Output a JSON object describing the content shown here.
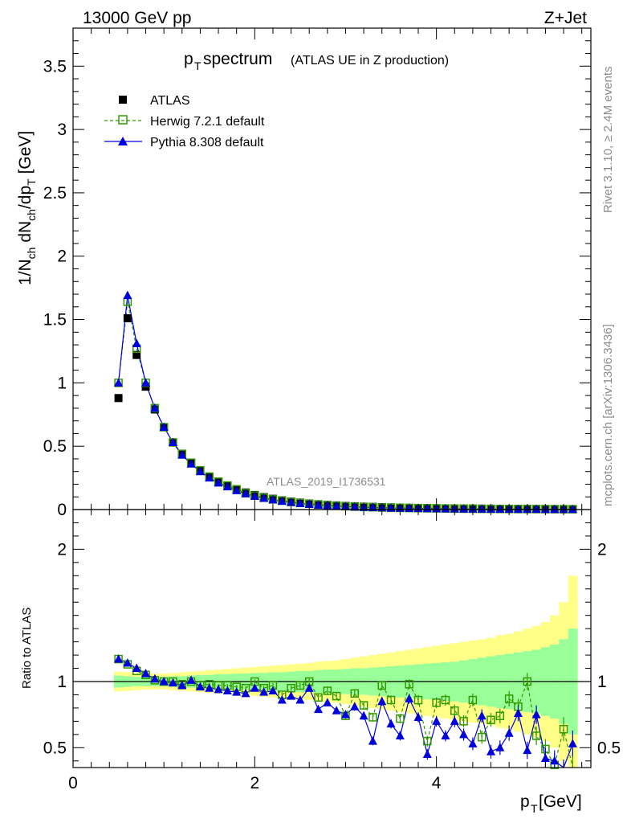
{
  "header": {
    "energy": "13000 GeV pp",
    "process": "Z+Jet"
  },
  "watermarks": {
    "rivet": "Rivet 3.1.10, ≥ 2.4M events",
    "mcplots": "mcplots.cern.ch [arXiv:1306.3436]",
    "analysis": "ATLAS_2019_I1736531"
  },
  "colors": {
    "atlas": "#000000",
    "herwig": "#339900",
    "pythia": "#0000dd",
    "band_inner": "#99ff99",
    "band_outer": "#ffff88"
  },
  "chart_data": [
    {
      "type": "scatter",
      "title_main": "p",
      "title_sub": "T",
      "title_rest": " spectrum",
      "title_note": "(ATLAS UE in Z production)",
      "ylabel": "1/N_ch dN_ch/dp_T [GeV]",
      "xlim": [
        0,
        5.7
      ],
      "ylim": [
        0,
        3.8
      ],
      "yticks": [
        "0",
        "0.5",
        "1",
        "1.5",
        "2",
        "2.5",
        "3",
        "3.5"
      ],
      "legend_position": "top-left",
      "legend": [
        "ATLAS",
        "Herwig 7.2.1 default",
        "Pythia 8.308 default"
      ],
      "x": [
        0.5,
        0.6,
        0.7,
        0.8,
        0.9,
        1.0,
        1.1,
        1.2,
        1.3,
        1.4,
        1.5,
        1.6,
        1.7,
        1.8,
        1.9,
        2.0,
        2.1,
        2.2,
        2.3,
        2.4,
        2.5,
        2.6,
        2.7,
        2.8,
        2.9,
        3.0,
        3.1,
        3.2,
        3.3,
        3.4,
        3.5,
        3.6,
        3.7,
        3.8,
        3.9,
        4.0,
        4.1,
        4.2,
        4.3,
        4.4,
        4.5,
        4.6,
        4.7,
        4.8,
        4.9,
        5.0,
        5.1,
        5.2,
        5.3,
        5.4,
        5.5
      ],
      "series": [
        {
          "name": "ATLAS",
          "values": [
            0.88,
            1.51,
            1.22,
            0.97,
            0.79,
            0.65,
            0.53,
            0.44,
            0.37,
            0.31,
            0.26,
            0.22,
            0.19,
            0.16,
            0.135,
            0.115,
            0.098,
            0.085,
            0.073,
            0.063,
            0.055,
            0.048,
            0.042,
            0.037,
            0.033,
            0.029,
            0.026,
            0.023,
            0.021,
            0.019,
            0.017,
            0.015,
            0.014,
            0.013,
            0.012,
            0.011,
            0.01,
            0.009,
            0.0085,
            0.008,
            0.0075,
            0.007,
            0.0065,
            0.006,
            0.0057,
            0.0054,
            0.005,
            0.0047,
            0.0044,
            0.0042,
            0.004
          ]
        },
        {
          "name": "Herwig 7.2.1 default",
          "values": [
            1.0,
            1.64,
            1.27,
            1.0,
            0.8,
            0.65,
            0.53,
            0.44,
            0.37,
            0.31,
            0.26,
            0.22,
            0.19,
            0.16,
            0.13,
            0.11,
            0.093,
            0.08,
            0.07,
            0.06,
            0.052,
            0.046,
            0.04,
            0.034,
            0.03,
            0.026,
            0.023,
            0.02,
            0.018,
            0.016,
            0.014,
            0.013,
            0.012,
            0.011,
            0.01,
            0.009,
            0.008,
            0.007,
            0.0065,
            0.006,
            0.0055,
            0.005,
            0.0046,
            0.0043,
            0.004,
            0.0037,
            0.0034,
            0.0031,
            0.0028,
            0.0026,
            0.0024
          ]
        },
        {
          "name": "Pythia 8.308 default",
          "values": [
            1.0,
            1.69,
            1.31,
            1.0,
            0.8,
            0.65,
            0.53,
            0.43,
            0.36,
            0.3,
            0.25,
            0.21,
            0.18,
            0.15,
            0.125,
            0.105,
            0.09,
            0.077,
            0.066,
            0.056,
            0.048,
            0.042,
            0.036,
            0.031,
            0.027,
            0.024,
            0.021,
            0.018,
            0.016,
            0.014,
            0.012,
            0.011,
            0.01,
            0.009,
            0.008,
            0.0072,
            0.0064,
            0.0057,
            0.0051,
            0.0046,
            0.0041,
            0.0037,
            0.0033,
            0.003,
            0.0027,
            0.0024,
            0.0021,
            0.0019,
            0.0017,
            0.0015,
            0.0014
          ]
        }
      ]
    },
    {
      "type": "scatter",
      "ylabel": "Ratio to ATLAS",
      "xlabel_main": "p",
      "xlabel_sub": "T",
      "xlabel_unit": " [GeV]",
      "xlim": [
        0,
        5.7
      ],
      "ylim": [
        0.35,
        2.3
      ],
      "xticks": [
        "0",
        "2",
        "4"
      ],
      "yticks": [
        "0.5",
        "1",
        "2"
      ],
      "reference_line": 1,
      "x": [
        0.5,
        0.6,
        0.7,
        0.8,
        0.9,
        1.0,
        1.1,
        1.2,
        1.3,
        1.4,
        1.5,
        1.6,
        1.7,
        1.8,
        1.9,
        2.0,
        2.1,
        2.2,
        2.3,
        2.4,
        2.5,
        2.6,
        2.7,
        2.8,
        2.9,
        3.0,
        3.1,
        3.2,
        3.3,
        3.4,
        3.5,
        3.6,
        3.7,
        3.8,
        3.9,
        4.0,
        4.1,
        4.2,
        4.3,
        4.4,
        4.5,
        4.6,
        4.7,
        4.8,
        4.9,
        5.0,
        5.1,
        5.2,
        5.3,
        5.4,
        5.5
      ],
      "band_inner": [
        0.045,
        0.04,
        0.035,
        0.035,
        0.035,
        0.035,
        0.04,
        0.04,
        0.045,
        0.05,
        0.05,
        0.055,
        0.055,
        0.06,
        0.06,
        0.065,
        0.065,
        0.07,
        0.07,
        0.075,
        0.08,
        0.08,
        0.085,
        0.09,
        0.09,
        0.095,
        0.1,
        0.1,
        0.105,
        0.11,
        0.115,
        0.12,
        0.125,
        0.13,
        0.135,
        0.14,
        0.145,
        0.15,
        0.16,
        0.17,
        0.18,
        0.19,
        0.2,
        0.21,
        0.22,
        0.23,
        0.24,
        0.26,
        0.28,
        0.32,
        0.4
      ],
      "band_outer": [
        0.075,
        0.07,
        0.065,
        0.06,
        0.06,
        0.06,
        0.065,
        0.07,
        0.075,
        0.08,
        0.085,
        0.09,
        0.095,
        0.1,
        0.105,
        0.11,
        0.115,
        0.12,
        0.125,
        0.13,
        0.135,
        0.14,
        0.15,
        0.155,
        0.16,
        0.17,
        0.18,
        0.19,
        0.2,
        0.21,
        0.22,
        0.23,
        0.24,
        0.25,
        0.26,
        0.27,
        0.28,
        0.29,
        0.3,
        0.31,
        0.32,
        0.33,
        0.35,
        0.36,
        0.38,
        0.4,
        0.42,
        0.45,
        0.5,
        0.6,
        0.8
      ],
      "series": [
        {
          "name": "Herwig 7.2.1 default",
          "values": [
            1.17,
            1.13,
            1.08,
            1.05,
            1.01,
            1.0,
            1.0,
            0.98,
            1.0,
            0.97,
            0.98,
            0.97,
            0.97,
            0.96,
            0.95,
            1.0,
            0.95,
            0.97,
            0.9,
            0.95,
            0.97,
            1.0,
            0.88,
            0.93,
            0.89,
            0.74,
            0.91,
            0.82,
            0.73,
            0.97,
            0.86,
            0.72,
            0.98,
            0.86,
            0.55,
            0.84,
            0.86,
            0.78,
            0.7,
            0.86,
            0.58,
            0.71,
            0.74,
            0.87,
            0.81,
            1.0,
            0.59,
            0.49,
            0.37,
            0.64,
            0.33
          ],
          "errors": [
            0.01,
            0.01,
            0.01,
            0.01,
            0.01,
            0.01,
            0.01,
            0.01,
            0.01,
            0.01,
            0.01,
            0.01,
            0.012,
            0.014,
            0.015,
            0.016,
            0.017,
            0.018,
            0.02,
            0.02,
            0.022,
            0.022,
            0.024,
            0.025,
            0.026,
            0.028,
            0.03,
            0.03,
            0.032,
            0.033,
            0.035,
            0.035,
            0.037,
            0.038,
            0.04,
            0.04,
            0.042,
            0.045,
            0.046,
            0.048,
            0.05,
            0.052,
            0.055,
            0.058,
            0.06,
            0.065,
            0.07,
            0.075,
            0.08,
            0.09,
            0.1
          ]
        },
        {
          "name": "Pythia 8.308 default",
          "values": [
            1.17,
            1.14,
            1.1,
            1.06,
            1.02,
            1.0,
            0.99,
            0.97,
            1.01,
            0.96,
            0.95,
            0.94,
            0.93,
            0.92,
            0.91,
            0.95,
            0.92,
            0.93,
            0.86,
            0.89,
            0.86,
            0.95,
            0.79,
            0.84,
            0.78,
            0.75,
            0.81,
            0.74,
            0.55,
            0.85,
            0.68,
            0.59,
            0.87,
            0.73,
            0.45,
            0.7,
            0.59,
            0.7,
            0.6,
            0.53,
            0.74,
            0.47,
            0.5,
            0.61,
            0.76,
            0.48,
            0.75,
            0.42,
            0.4,
            0.32,
            0.53
          ],
          "errors": [
            0.01,
            0.01,
            0.01,
            0.01,
            0.01,
            0.01,
            0.01,
            0.01,
            0.01,
            0.01,
            0.01,
            0.012,
            0.012,
            0.014,
            0.015,
            0.016,
            0.017,
            0.018,
            0.02,
            0.02,
            0.022,
            0.022,
            0.024,
            0.025,
            0.026,
            0.028,
            0.03,
            0.03,
            0.032,
            0.033,
            0.035,
            0.035,
            0.037,
            0.038,
            0.04,
            0.04,
            0.042,
            0.045,
            0.046,
            0.048,
            0.05,
            0.052,
            0.055,
            0.058,
            0.06,
            0.065,
            0.07,
            0.075,
            0.08,
            0.09,
            0.1
          ]
        }
      ]
    }
  ]
}
